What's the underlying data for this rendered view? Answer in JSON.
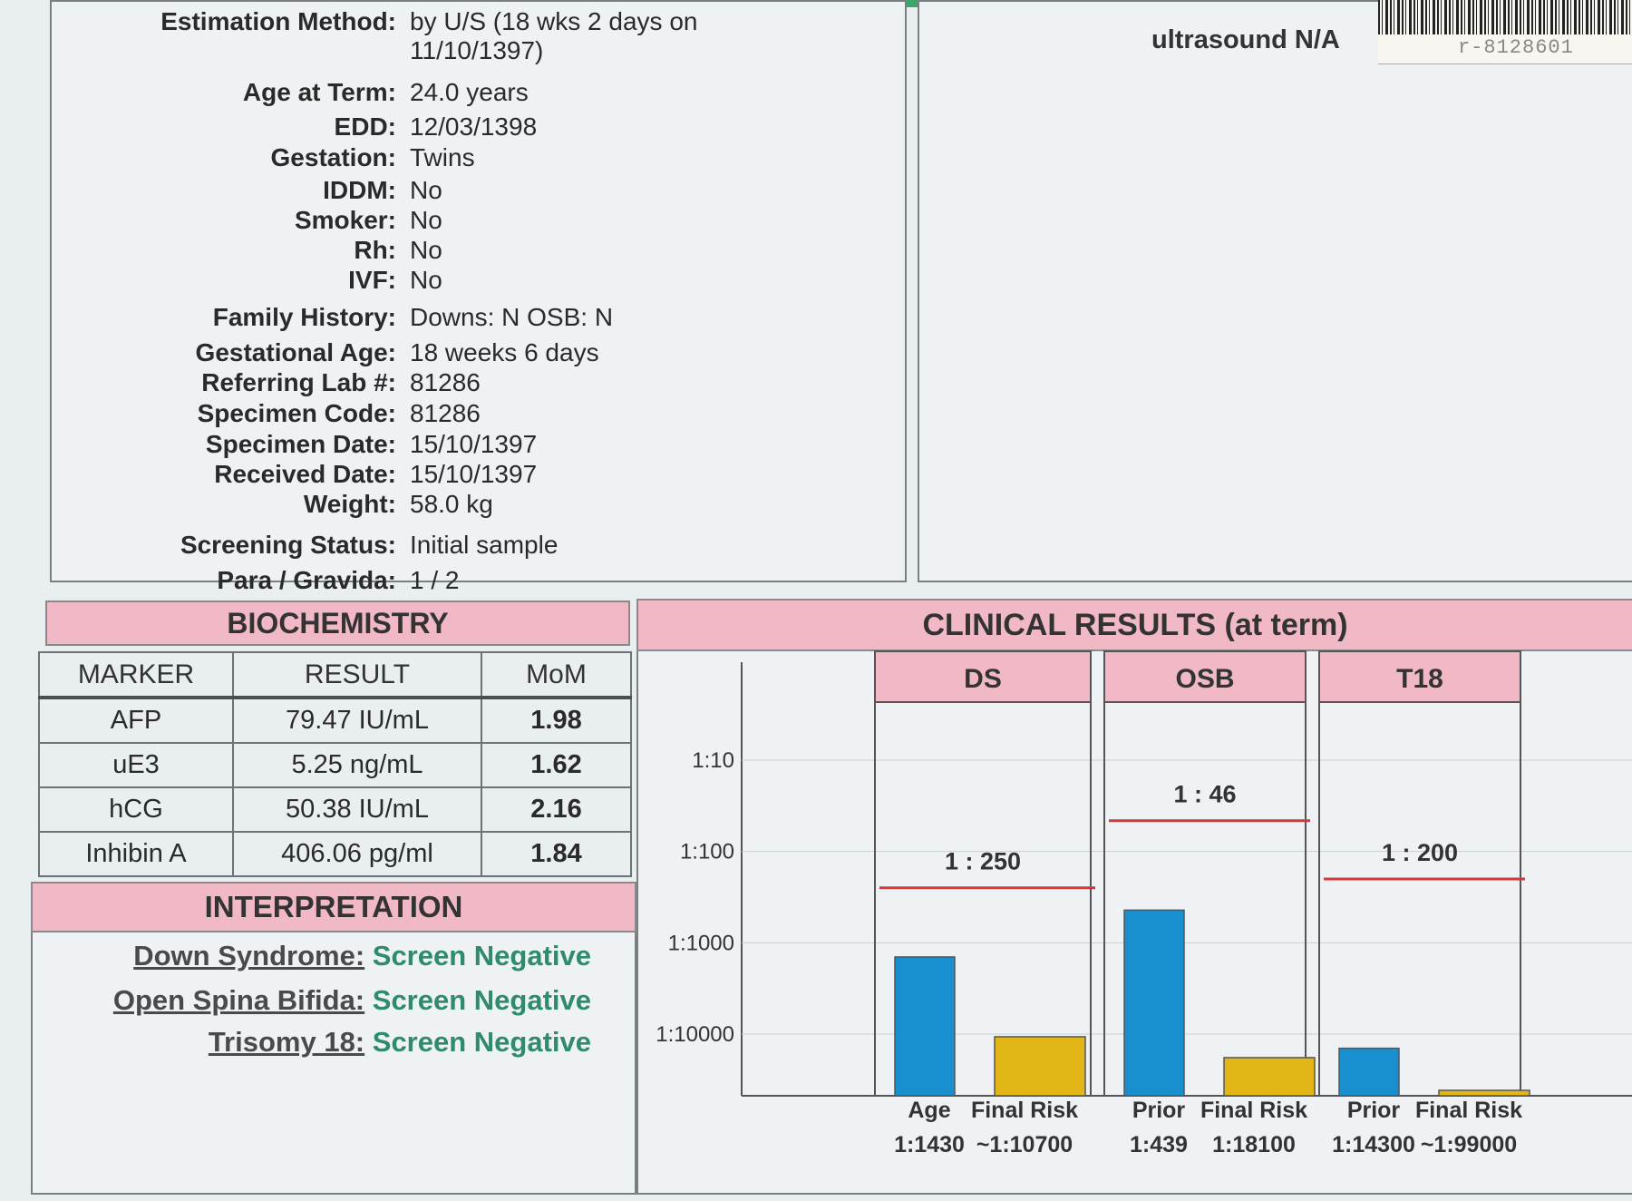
{
  "patient": {
    "fields": [
      {
        "label": "Estimation Method:",
        "value": "by U/S (18 wks 2 days on",
        "value2": "11/10/1397)"
      },
      {
        "label": "Age at Term:",
        "value": "24.0 years"
      },
      {
        "label": "EDD:",
        "value": "12/03/1398"
      },
      {
        "label": "Gestation:",
        "value": "Twins"
      },
      {
        "label": "IDDM:",
        "value": "No"
      },
      {
        "label": "Smoker:",
        "value": "No"
      },
      {
        "label": "Rh:",
        "value": "No"
      },
      {
        "label": "IVF:",
        "value": "No"
      },
      {
        "label": "Family History:",
        "value": "Downs: N     OSB: N"
      },
      {
        "label": "Gestational Age:",
        "value": "18 weeks 6 days"
      },
      {
        "label": "Referring Lab #:",
        "value": "81286"
      },
      {
        "label": "Specimen Code:",
        "value": "81286"
      },
      {
        "label": "Specimen Date:",
        "value": "15/10/1397"
      },
      {
        "label": "Received Date:",
        "value": "15/10/1397"
      },
      {
        "label": "Weight:",
        "value": "58.0 kg"
      },
      {
        "label": "Screening Status:",
        "value": "Initial sample"
      },
      {
        "label": "Para / Gravida:",
        "value": "1 / 2"
      }
    ]
  },
  "ultrasound": "ultrasound N/A",
  "barcode_number": "r-8128601",
  "biochemistry": {
    "title": "BIOCHEMISTRY",
    "headers": [
      "MARKER",
      "RESULT",
      "MoM"
    ],
    "rows": [
      {
        "marker": "AFP",
        "result": "79.47 IU/mL",
        "mom": "1.98"
      },
      {
        "marker": "uE3",
        "result": "5.25 ng/mL",
        "mom": "1.62"
      },
      {
        "marker": "hCG",
        "result": "50.38 IU/mL",
        "mom": "2.16"
      },
      {
        "marker": "Inhibin A",
        "result": "406.06 pg/ml",
        "mom": "1.84"
      }
    ]
  },
  "interpretation": {
    "title": "INTERPRETATION",
    "rows": [
      {
        "label": "Down Syndrome:",
        "value": "Screen Negative"
      },
      {
        "label": "Open Spina Bifida:",
        "value": "Screen Negative"
      },
      {
        "label": "Trisomy 18:",
        "value": "Screen Negative"
      }
    ]
  },
  "clinical": {
    "title": "CLINICAL RESULTS (at term)"
  },
  "chart_data": {
    "type": "bar",
    "scale": "log-risk",
    "y_ticks": [
      "1:10",
      "1:100",
      "1:1000",
      "1:10000"
    ],
    "y_tick_denominators": [
      10,
      100,
      1000,
      10000
    ],
    "colors": {
      "first_bar": "#1a8fcf",
      "second_bar": "#e2b617",
      "cutoff": "#d03a3a",
      "panel_head": "#f1b8c6"
    },
    "panels": [
      {
        "name": "DS",
        "cutoff_label": "1 : 250",
        "cutoff_denominator": 250,
        "bars": [
          {
            "label": "Age",
            "value_label": "1:1430",
            "denominator": 1430
          },
          {
            "label": "Final Risk",
            "value_label": "~1:10700",
            "denominator": 10700
          }
        ]
      },
      {
        "name": "OSB",
        "cutoff_label": "1 : 46",
        "cutoff_denominator": 46,
        "bars": [
          {
            "label": "Prior",
            "value_label": "1:439",
            "denominator": 439
          },
          {
            "label": "Final Risk",
            "value_label": "1:18100",
            "denominator": 18100
          }
        ]
      },
      {
        "name": "T18",
        "cutoff_label": "1 : 200",
        "cutoff_denominator": 200,
        "bars": [
          {
            "label": "Prior",
            "value_label": "1:14300",
            "denominator": 14300
          },
          {
            "label": "Final Risk",
            "value_label": "~1:99000",
            "denominator": 99000
          }
        ]
      }
    ]
  }
}
